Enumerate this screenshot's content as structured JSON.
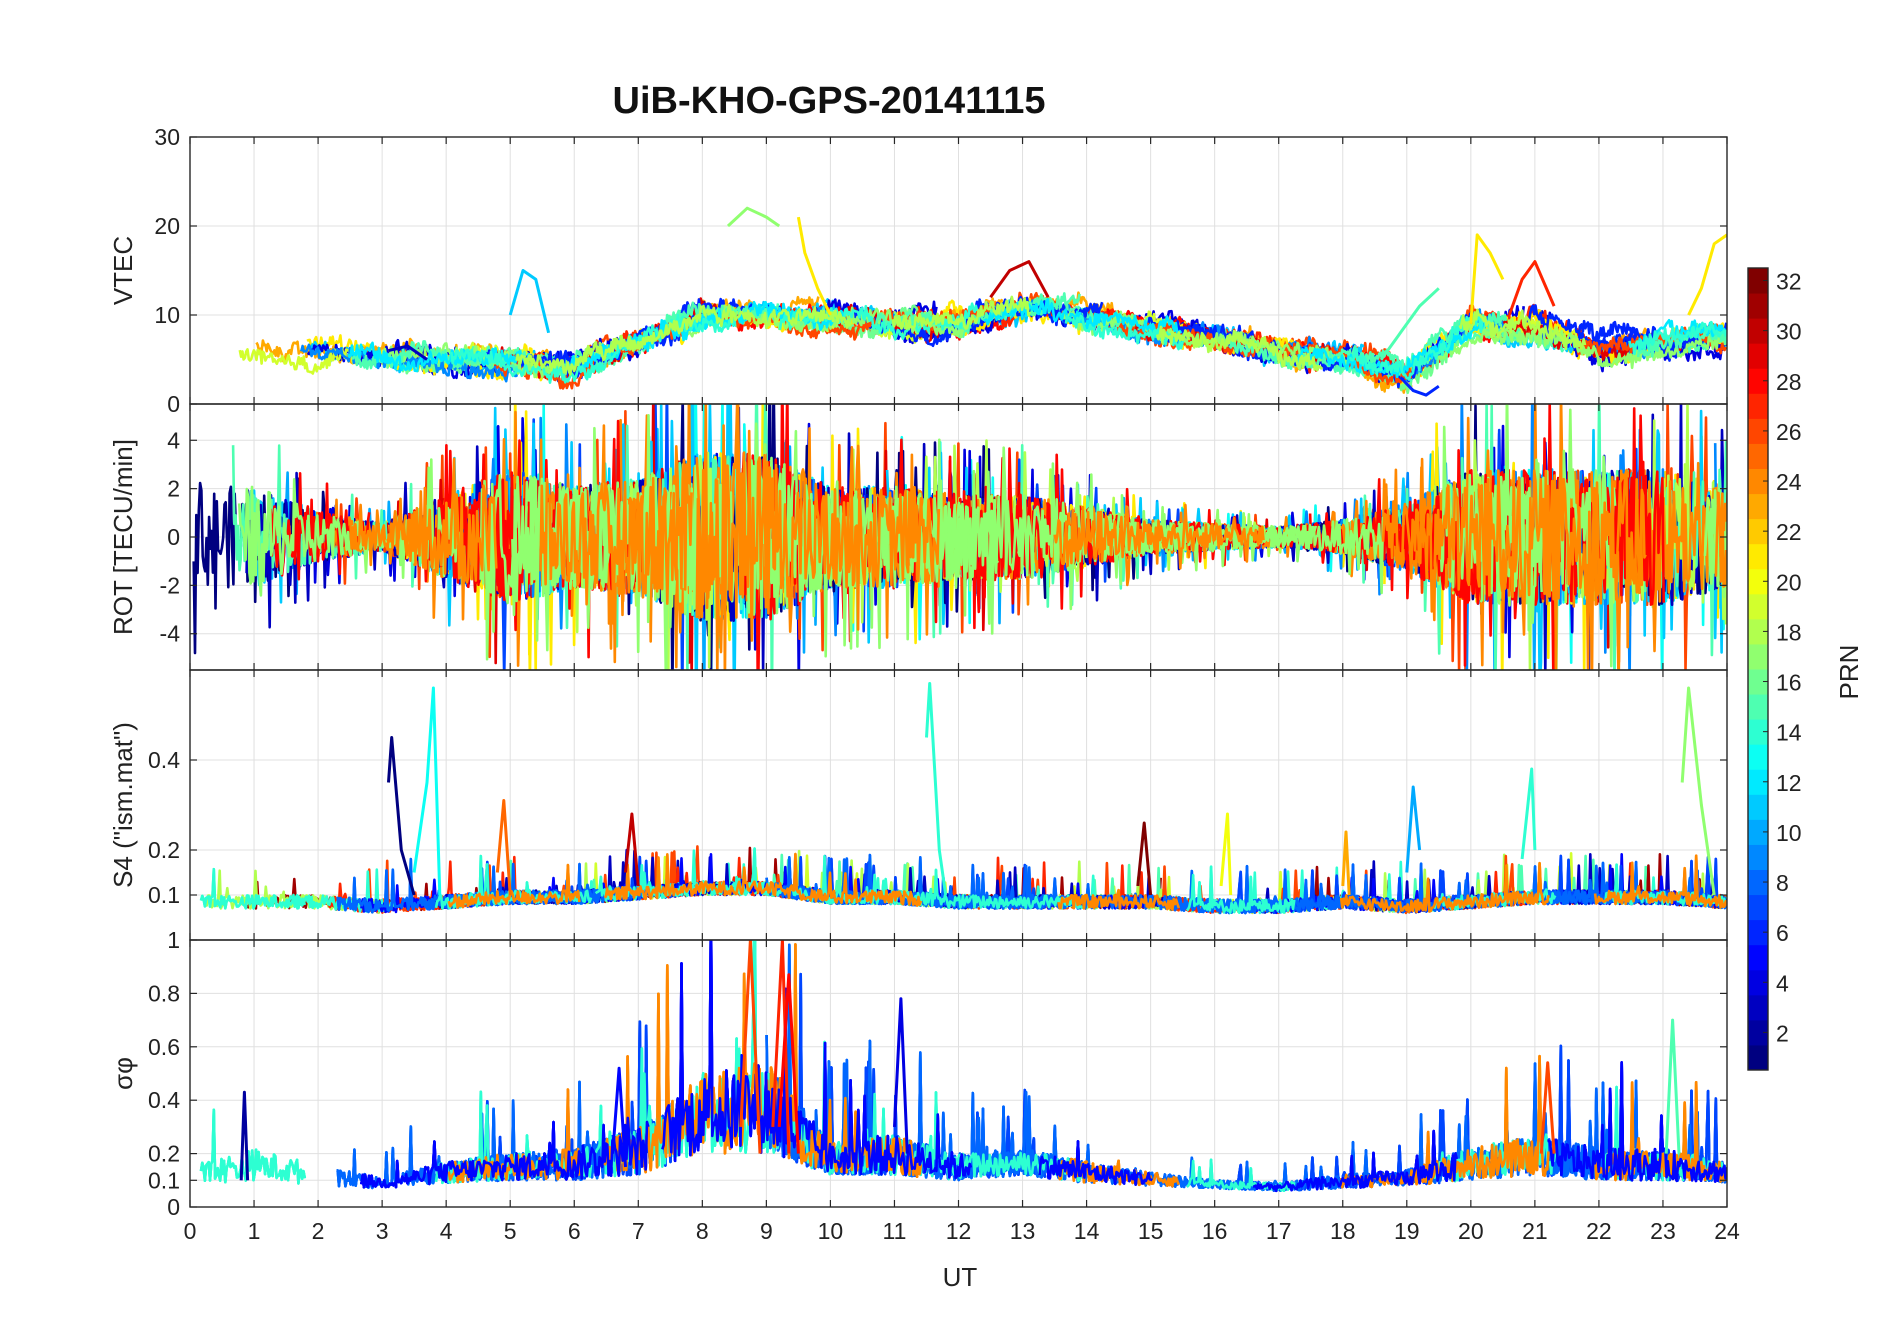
{
  "chart_data": {
    "type": "line",
    "title": "UiB-KHO-GPS-20141115",
    "xlabel": "UT",
    "x_ticks": [
      "0",
      "1",
      "2",
      "3",
      "4",
      "5",
      "6",
      "7",
      "8",
      "9",
      "10",
      "11",
      "12",
      "13",
      "14",
      "15",
      "16",
      "17",
      "18",
      "19",
      "20",
      "21",
      "22",
      "23",
      "24"
    ],
    "xlim": [
      0,
      24
    ],
    "grid": true,
    "colormap": "jet",
    "colorbar": {
      "label": "PRN",
      "range": [
        1,
        32
      ],
      "ticks": [
        "2",
        "4",
        "6",
        "8",
        "10",
        "12",
        "14",
        "16",
        "18",
        "20",
        "22",
        "24",
        "26",
        "28",
        "30",
        "32"
      ]
    },
    "panels": [
      {
        "id": "vtec",
        "ylabel": "VTEC",
        "ylim": [
          0,
          30
        ],
        "yticks": [
          0,
          10,
          20,
          30
        ],
        "ytick_labels": [
          "0",
          "10",
          "20",
          "30"
        ],
        "baseline": [
          6,
          6,
          6,
          5.5,
          5,
          5,
          4.5,
          7,
          10,
          10,
          9.5,
          9,
          9,
          11,
          10,
          8.5,
          7.5,
          6,
          5.5,
          3,
          9,
          9,
          6,
          7,
          8
        ],
        "amplitude": 2.5,
        "features": [
          {
            "prn": 3,
            "x": [
              3.1,
              3.4,
              3.7
            ],
            "y": [
              6,
              6.5,
              5
            ]
          },
          {
            "prn": 11,
            "x": [
              5.0,
              5.2,
              5.4,
              5.6
            ],
            "y": [
              10,
              15,
              14,
              8
            ]
          },
          {
            "prn": 17,
            "x": [
              8.4,
              8.7,
              9.0,
              9.2
            ],
            "y": [
              20,
              22,
              21,
              20
            ]
          },
          {
            "prn": 21,
            "x": [
              9.5,
              9.6,
              9.8,
              10.0
            ],
            "y": [
              21,
              17,
              13,
              10
            ]
          },
          {
            "prn": 30,
            "x": [
              12.5,
              12.8,
              13.1,
              13.4
            ],
            "y": [
              12,
              15,
              16,
              12
            ]
          },
          {
            "prn": 6,
            "x": [
              18.9,
              19.1,
              19.3,
              19.5
            ],
            "y": [
              3,
              1.5,
              1,
              2
            ]
          },
          {
            "prn": 15,
            "x": [
              18.6,
              18.9,
              19.2,
              19.5
            ],
            "y": [
              5,
              8,
              11,
              13
            ]
          },
          {
            "prn": 21,
            "x": [
              20.0,
              20.1,
              20.3,
              20.5
            ],
            "y": [
              9,
              19,
              17,
              14
            ]
          },
          {
            "prn": 27,
            "x": [
              20.6,
              20.8,
              21.0,
              21.3
            ],
            "y": [
              10,
              14,
              16,
              11
            ]
          },
          {
            "prn": 21,
            "x": [
              23.4,
              23.6,
              23.8,
              24.0
            ],
            "y": [
              10,
              13,
              18,
              19
            ]
          }
        ]
      },
      {
        "id": "rot",
        "ylabel": "ROT [TECU/min]",
        "ylim": [
          -5.5,
          5.5
        ],
        "yticks": [
          -4,
          -2,
          0,
          2,
          4
        ],
        "ytick_labels": [
          "-4",
          "-2",
          "0",
          "2",
          "4"
        ],
        "baseline": [
          0,
          0,
          0,
          0,
          0,
          0,
          0,
          0,
          0,
          0,
          0,
          0,
          0,
          0,
          0,
          0,
          0,
          0,
          0,
          0,
          0,
          0,
          0,
          0,
          0
        ],
        "amplitude": [
          3,
          3,
          1.5,
          0.8,
          2.5,
          4,
          3,
          3.5,
          5,
          5,
          3,
          3,
          2.5,
          2.5,
          1.8,
          1,
          0.8,
          0.6,
          1,
          2,
          4,
          4,
          4,
          4,
          3
        ],
        "features": []
      },
      {
        "id": "s4",
        "ylabel": "S4 (\"ism.mat\")",
        "ylim": [
          0,
          0.6
        ],
        "yticks": [
          0.1,
          0.2,
          0.4
        ],
        "ytick_labels": [
          "0.1",
          "0.2",
          "0.4"
        ],
        "baseline": [
          0.07,
          0.07,
          0.07,
          0.06,
          0.07,
          0.08,
          0.08,
          0.09,
          0.1,
          0.1,
          0.08,
          0.08,
          0.07,
          0.07,
          0.07,
          0.07,
          0.06,
          0.06,
          0.07,
          0.06,
          0.07,
          0.08,
          0.08,
          0.08,
          0.07
        ],
        "amplitude": 0.03,
        "features": [
          {
            "prn": 1,
            "x": [
              3.1,
              3.15,
              3.3,
              3.5
            ],
            "y": [
              0.35,
              0.45,
              0.2,
              0.1
            ]
          },
          {
            "prn": 13,
            "x": [
              3.5,
              3.7,
              3.8,
              3.9
            ],
            "y": [
              0.15,
              0.35,
              0.56,
              0.1
            ]
          },
          {
            "prn": 25,
            "x": [
              4.8,
              4.9,
              5.0
            ],
            "y": [
              0.15,
              0.31,
              0.1
            ]
          },
          {
            "prn": 30,
            "x": [
              6.8,
              6.9,
              7.0
            ],
            "y": [
              0.15,
              0.28,
              0.12
            ]
          },
          {
            "prn": 14,
            "x": [
              11.5,
              11.55,
              11.7,
              11.8
            ],
            "y": [
              0.45,
              0.57,
              0.2,
              0.1
            ]
          },
          {
            "prn": 32,
            "x": [
              14.8,
              14.9,
              15.0
            ],
            "y": [
              0.12,
              0.26,
              0.1
            ]
          },
          {
            "prn": 20,
            "x": [
              16.1,
              16.2,
              16.25
            ],
            "y": [
              0.12,
              0.28,
              0.1
            ]
          },
          {
            "prn": 23,
            "x": [
              18.0,
              18.05,
              18.1
            ],
            "y": [
              0.12,
              0.24,
              0.1
            ]
          },
          {
            "prn": 10,
            "x": [
              19.0,
              19.1,
              19.2
            ],
            "y": [
              0.15,
              0.34,
              0.2
            ]
          },
          {
            "prn": 14,
            "x": [
              20.8,
              20.95,
              21.0
            ],
            "y": [
              0.18,
              0.38,
              0.2
            ]
          },
          {
            "prn": 17,
            "x": [
              23.3,
              23.4,
              23.6,
              23.8
            ],
            "y": [
              0.35,
              0.56,
              0.3,
              0.1
            ]
          }
        ]
      },
      {
        "id": "sigma_phi",
        "ylabel": "σφ",
        "ylim": [
          0,
          1
        ],
        "yticks": [
          0,
          0.1,
          0.2,
          0.4,
          0.6,
          0.8,
          1
        ],
        "ytick_labels": [
          "0",
          "0.1",
          "0.2",
          "0.4",
          "0.6",
          "0.8",
          "1"
        ],
        "baseline": [
          0.08,
          0.1,
          0.08,
          0.07,
          0.09,
          0.1,
          0.1,
          0.12,
          0.2,
          0.2,
          0.12,
          0.12,
          0.1,
          0.12,
          0.09,
          0.08,
          0.07,
          0.06,
          0.07,
          0.08,
          0.1,
          0.12,
          0.1,
          0.1,
          0.09
        ],
        "amplitude": [
          0.08,
          0.12,
          0.08,
          0.04,
          0.08,
          0.1,
          0.12,
          0.18,
          0.3,
          0.35,
          0.12,
          0.15,
          0.1,
          0.1,
          0.08,
          0.05,
          0.03,
          0.03,
          0.05,
          0.06,
          0.12,
          0.15,
          0.12,
          0.12,
          0.08
        ],
        "features": [
          {
            "prn": 2,
            "x": [
              0.8,
              0.85,
              0.9
            ],
            "y": [
              0.1,
              0.43,
              0.1
            ]
          },
          {
            "prn": 26,
            "x": [
              8.6,
              8.75,
              8.9
            ],
            "y": [
              0.3,
              1.0,
              0.2
            ]
          },
          {
            "prn": 27,
            "x": [
              9.1,
              9.25,
              9.35
            ],
            "y": [
              0.3,
              1.0,
              0.2
            ]
          },
          {
            "prn": 28,
            "x": [
              9.2,
              9.35,
              9.5
            ],
            "y": [
              0.3,
              0.87,
              0.2
            ]
          },
          {
            "prn": 4,
            "x": [
              11.0,
              11.1,
              11.2
            ],
            "y": [
              0.3,
              0.78,
              0.2
            ]
          },
          {
            "prn": 5,
            "x": [
              6.6,
              6.7,
              6.8
            ],
            "y": [
              0.2,
              0.52,
              0.15
            ]
          },
          {
            "prn": 15,
            "x": [
              23.05,
              23.15,
              23.25
            ],
            "y": [
              0.2,
              0.7,
              0.2
            ]
          },
          {
            "prn": 26,
            "x": [
              21.1,
              21.2,
              21.3
            ],
            "y": [
              0.2,
              0.54,
              0.2
            ]
          }
        ]
      }
    ]
  }
}
